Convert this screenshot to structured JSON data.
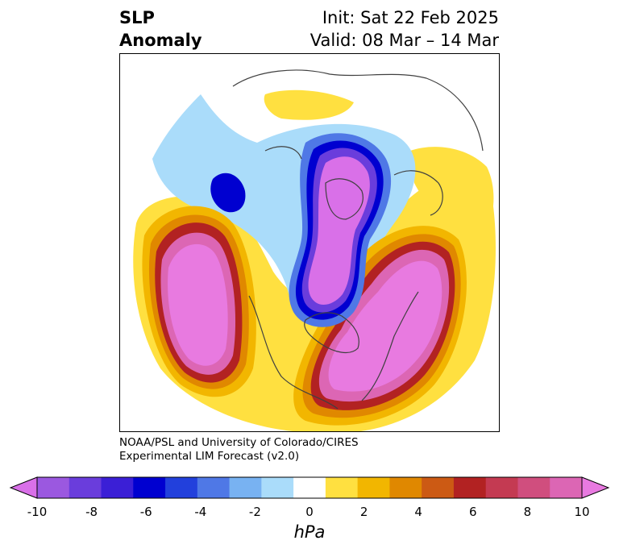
{
  "title": {
    "left_line1": "SLP",
    "left_line2": "Anomaly",
    "right_line1": "Init: Sat 22 Feb 2025",
    "right_line2": "Valid: 08 Mar – 14 Mar"
  },
  "credit": {
    "line1": "NOAA/PSL and University of Colorado/CIRES",
    "line2": "Experimental LIM Forecast (v2.0)"
  },
  "colorbar": {
    "unit": "hPa",
    "tick_labels": [
      "-10",
      "-8",
      "-6",
      "-4",
      "-2",
      "0",
      "2",
      "4",
      "6",
      "8",
      "10"
    ],
    "colors": [
      "#d970e8",
      "#9b58e0",
      "#6a3ddc",
      "#3b1fd6",
      "#0000d0",
      "#2240dc",
      "#4f78e6",
      "#78b2f2",
      "#aadcfa",
      "#ffffff",
      "#ffe040",
      "#f2b600",
      "#e08800",
      "#cc5a14",
      "#b22222",
      "#c43a52",
      "#d04e7e",
      "#dc66b4",
      "#e87ae0"
    ]
  },
  "map": {
    "projection": "polar stereographic (North Pole)",
    "variable": "sea level pressure anomaly"
  }
}
